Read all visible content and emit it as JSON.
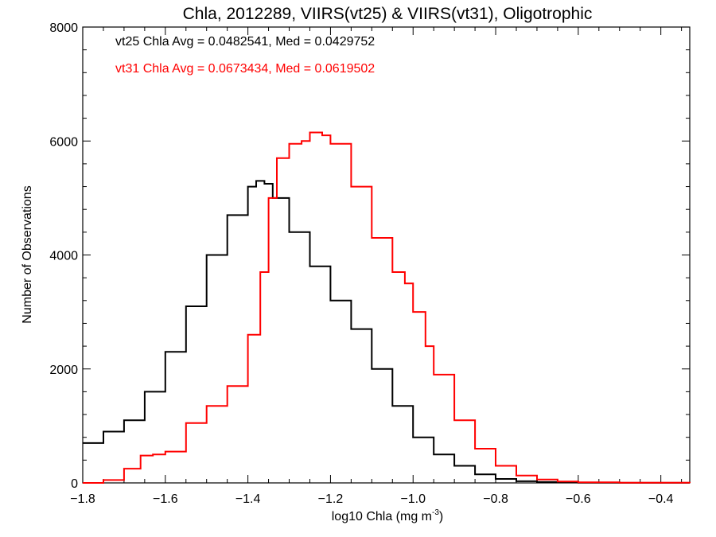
{
  "chart_data": {
    "type": "line",
    "title": "Chla, 2012289, VIIRS(vt25) & VIIRS(vt31), Oligotrophic",
    "xlabel_main": "log10 Chla (mg m",
    "xlabel_sup": "-3",
    "xlabel_tail": ")",
    "ylabel": "Number of Observations",
    "xlim": [
      -1.8,
      -0.33
    ],
    "ylim": [
      0,
      8000
    ],
    "x_ticks": [
      -1.8,
      -1.6,
      -1.4,
      -1.2,
      -1.0,
      -0.8,
      -0.6,
      -0.4
    ],
    "x_tick_labels": [
      "−1.8",
      "−1.6",
      "−1.4",
      "−1.2",
      "−1.0",
      "−0.8",
      "−0.6",
      "−0.4"
    ],
    "y_ticks": [
      0,
      2000,
      4000,
      6000,
      8000
    ],
    "y_tick_labels": [
      "0",
      "2000",
      "4000",
      "6000",
      "8000"
    ],
    "annotations": [
      {
        "text": "vt25 Chla Avg = 0.0482541, Med = 0.0429752",
        "color": "#000000"
      },
      {
        "text": "vt31 Chla Avg = 0.0673434, Med = 0.0619502",
        "color": "#ff0000"
      }
    ],
    "series": [
      {
        "color": "#000000",
        "step": true,
        "x": [
          -1.8,
          -1.75,
          -1.7,
          -1.65,
          -1.6,
          -1.55,
          -1.5,
          -1.45,
          -1.4,
          -1.38,
          -1.36,
          -1.34,
          -1.3,
          -1.25,
          -1.2,
          -1.15,
          -1.1,
          -1.05,
          -1.0,
          -0.95,
          -0.9,
          -0.85,
          -0.8,
          -0.75,
          -0.7,
          -0.65,
          -0.6,
          -0.5,
          -0.33
        ],
        "values": [
          700,
          900,
          1100,
          1600,
          2300,
          3100,
          4000,
          4700,
          5200,
          5300,
          5250,
          5000,
          4400,
          3800,
          3200,
          2700,
          2000,
          1350,
          800,
          500,
          300,
          150,
          70,
          30,
          15,
          8,
          4,
          1,
          0
        ]
      },
      {
        "color": "#ff0000",
        "step": true,
        "x": [
          -1.8,
          -1.75,
          -1.7,
          -1.66,
          -1.63,
          -1.6,
          -1.55,
          -1.5,
          -1.45,
          -1.4,
          -1.37,
          -1.35,
          -1.33,
          -1.3,
          -1.27,
          -1.25,
          -1.22,
          -1.2,
          -1.15,
          -1.1,
          -1.05,
          -1.02,
          -1.0,
          -0.97,
          -0.95,
          -0.9,
          -0.85,
          -0.8,
          -0.75,
          -0.7,
          -0.65,
          -0.6,
          -0.5,
          -0.33
        ],
        "values": [
          0,
          50,
          250,
          480,
          500,
          550,
          1050,
          1350,
          1700,
          2600,
          3700,
          5000,
          5700,
          5950,
          6000,
          6150,
          6100,
          5950,
          5200,
          4300,
          3700,
          3500,
          3000,
          2400,
          1900,
          1100,
          600,
          300,
          130,
          60,
          25,
          10,
          3,
          0
        ]
      }
    ]
  }
}
